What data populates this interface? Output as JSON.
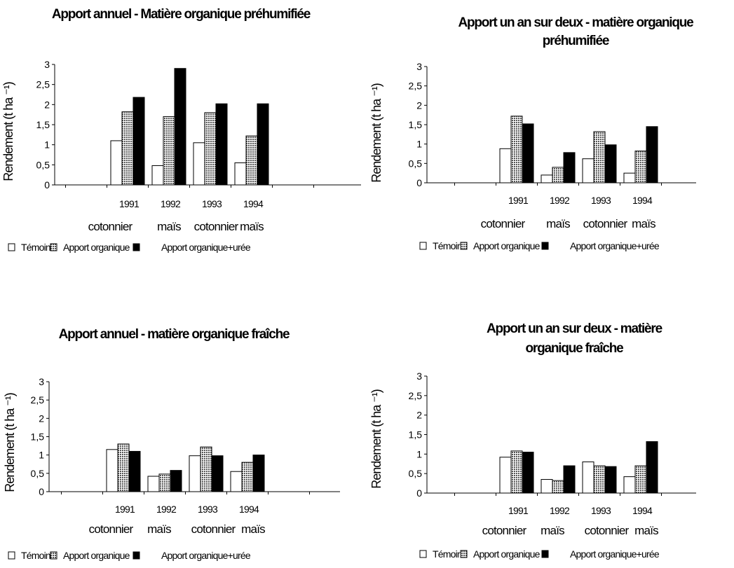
{
  "chart_data": [
    {
      "type": "bar",
      "title": "Apport annuel - Matière organique préhumifiée",
      "ylabel": "Rendement     (t ha ⁻¹)",
      "ylim": [
        0,
        3
      ],
      "yticks": [
        "0",
        "0,5",
        "1",
        "1,5",
        "2",
        "2,5",
        "3"
      ],
      "categories": [
        "1991",
        "1992",
        "1993",
        "1994"
      ],
      "crops": [
        "cotonnier",
        "maïs",
        "cotonnier",
        "maïs"
      ],
      "series": [
        {
          "name": "Témoin",
          "values": [
            1.1,
            0.48,
            1.05,
            0.55
          ]
        },
        {
          "name": "Apport organique",
          "values": [
            1.82,
            1.7,
            1.8,
            1.22
          ]
        },
        {
          "name": "Apport organique+urée",
          "values": [
            2.18,
            2.9,
            2.02,
            2.02
          ]
        }
      ],
      "legend_position": "bottom",
      "grid": false
    },
    {
      "type": "bar",
      "title": "Apport un an sur deux - matière organique préhumifiée",
      "ylabel": "Rendement     (t ha ⁻¹)",
      "ylim": [
        0,
        3
      ],
      "yticks": [
        "0",
        "0,5",
        "1",
        "1,5",
        "2",
        "2,5",
        "3"
      ],
      "categories": [
        "1991",
        "1992",
        "1993",
        "1994"
      ],
      "crops": [
        "cotonnier",
        "maïs",
        "cotonnier",
        "maïs"
      ],
      "series": [
        {
          "name": "Témoin",
          "values": [
            0.88,
            0.2,
            0.62,
            0.25
          ]
        },
        {
          "name": "Apport organique",
          "values": [
            1.72,
            0.4,
            1.32,
            0.82
          ]
        },
        {
          "name": "Apport organique+urée",
          "values": [
            1.52,
            0.78,
            0.98,
            1.45
          ]
        }
      ],
      "legend_position": "bottom",
      "grid": false
    },
    {
      "type": "bar",
      "title": "Apport annuel - matière organique fraîche",
      "ylabel": "Rendement     (t ha ⁻¹)",
      "ylim": [
        0,
        3
      ],
      "yticks": [
        "0",
        "0,5",
        "1",
        "1,5",
        "2",
        "2,5",
        "3"
      ],
      "categories": [
        "1991",
        "1992",
        "1993",
        "1994"
      ],
      "crops": [
        "cotonnier",
        "maïs",
        "cotonnier",
        "maïs"
      ],
      "series": [
        {
          "name": "Témoin",
          "values": [
            1.15,
            0.42,
            0.98,
            0.55
          ]
        },
        {
          "name": "Apport organique",
          "values": [
            1.3,
            0.48,
            1.22,
            0.8
          ]
        },
        {
          "name": "Apport organique+urée",
          "values": [
            1.1,
            0.58,
            0.98,
            1.0
          ]
        }
      ],
      "legend_position": "bottom",
      "grid": false
    },
    {
      "type": "bar",
      "title": "Apport un an sur deux - matière organique fraîche",
      "ylabel": "Rendement     (t ha ⁻¹)",
      "ylim": [
        0,
        3
      ],
      "yticks": [
        "0",
        "0,5",
        "1",
        "1,5",
        "2",
        "2,5",
        "3"
      ],
      "categories": [
        "1991",
        "1992",
        "1993",
        "1994"
      ],
      "crops": [
        "cotonnier",
        "maïs",
        "cotonnier",
        "maïs"
      ],
      "series": [
        {
          "name": "Témoin",
          "values": [
            0.92,
            0.35,
            0.8,
            0.42
          ]
        },
        {
          "name": "Apport organique",
          "values": [
            1.08,
            0.32,
            0.7,
            0.7
          ]
        },
        {
          "name": "Apport organique+urée",
          "values": [
            1.05,
            0.7,
            0.68,
            1.32
          ]
        }
      ],
      "legend_position": "bottom",
      "grid": false
    }
  ],
  "colors": {
    "temoin_fill": "#ffffff",
    "organique_fill": "#c8c8c8",
    "uree_fill": "#000000",
    "stroke": "#000000"
  }
}
